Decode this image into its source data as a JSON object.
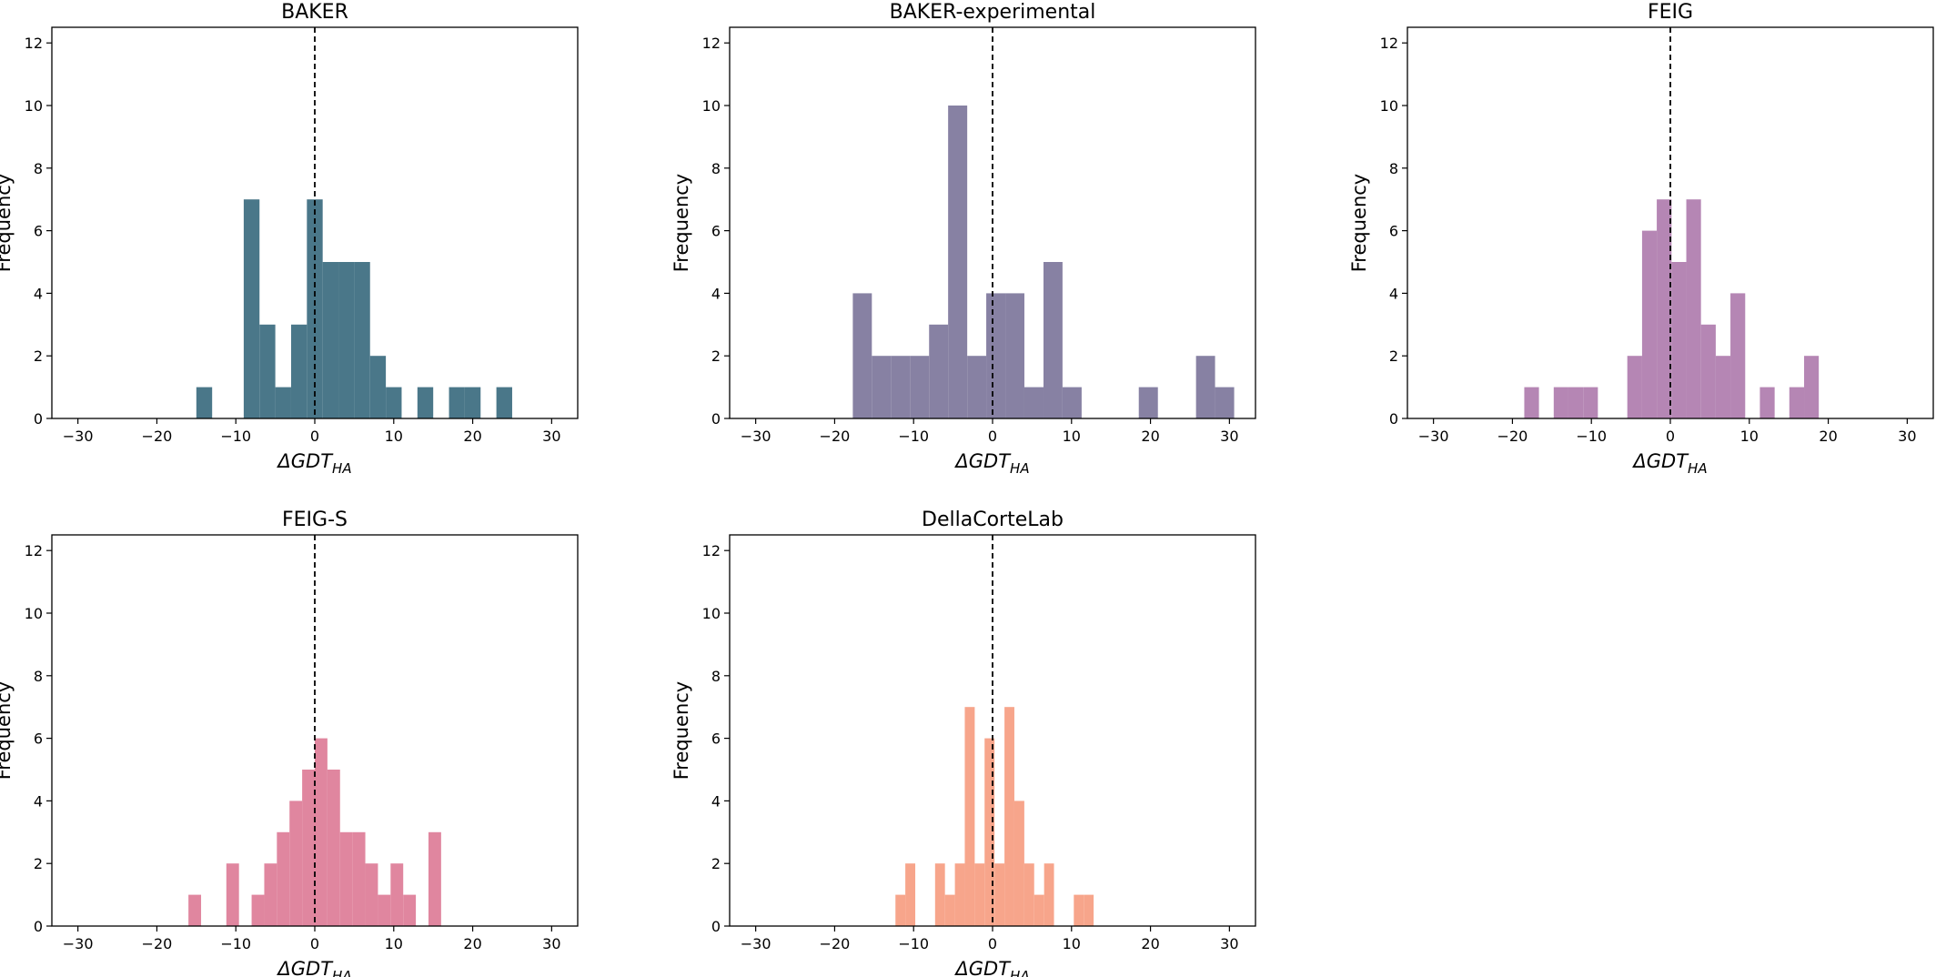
{
  "chart_data": [
    {
      "type": "histogram",
      "title": "BAKER",
      "color": "#4a7789",
      "bins": [
        -15,
        -13,
        -11,
        -9,
        -7,
        -5,
        -3,
        -1,
        1,
        3,
        5,
        7,
        9,
        11,
        13,
        15,
        17,
        19,
        21,
        23,
        25
      ],
      "values": [
        1,
        0,
        0,
        7,
        3,
        1,
        3,
        7,
        5,
        5,
        5,
        2,
        1,
        0,
        1,
        0,
        1,
        1,
        0,
        1
      ],
      "xlim": [
        -33.3,
        33.3
      ],
      "xticks": [
        {
          "value": -30,
          "label": "−30"
        },
        {
          "value": -20,
          "label": "−20"
        },
        {
          "value": -10,
          "label": "−10"
        },
        0,
        10,
        20,
        30
      ],
      "ylim": [
        0,
        12.5
      ],
      "yticks": [
        0,
        2,
        4,
        6,
        8,
        10,
        12
      ],
      "xlabel": {
        "text": "ΔGDT",
        "sub": "HA"
      },
      "ylabel": "Frequency",
      "vline": 0
    },
    {
      "type": "histogram",
      "title": "BAKER-experimental",
      "color": "#8781a3",
      "bins": [
        -17.7,
        -15.29,
        -12.87,
        -10.46,
        -8.04,
        -5.63,
        -3.21,
        -0.8,
        1.62,
        4.03,
        6.45,
        8.86,
        11.28,
        13.69,
        16.11,
        18.52,
        20.94,
        23.35,
        25.77,
        28.18,
        30.6
      ],
      "values": [
        4,
        2,
        2,
        2,
        3,
        10,
        2,
        4,
        4,
        1,
        5,
        1,
        0,
        0,
        0,
        1,
        0,
        0,
        2,
        1
      ],
      "xlim": [
        -33.3,
        33.3
      ],
      "xticks": [
        {
          "value": -30,
          "label": "−30"
        },
        {
          "value": -20,
          "label": "−20"
        },
        {
          "value": -10,
          "label": "−10"
        },
        0,
        10,
        20,
        30
      ],
      "ylim": [
        0,
        12.5
      ],
      "yticks": [
        0,
        2,
        4,
        6,
        8,
        10,
        12
      ],
      "xlabel": {
        "text": "ΔGDT",
        "sub": "HA"
      },
      "ylabel": "Frequency",
      "vline": 0
    },
    {
      "type": "histogram",
      "title": "FEIG",
      "color": "#b586b4",
      "bins": [
        -18.5,
        -16.64,
        -14.77,
        -12.91,
        -11.04,
        -9.18,
        -7.31,
        -5.45,
        -3.58,
        -1.72,
        0.15,
        2.02,
        3.88,
        5.75,
        7.61,
        9.48,
        11.34,
        13.21,
        15.07,
        16.94,
        18.8
      ],
      "values": [
        1,
        0,
        1,
        1,
        1,
        0,
        0,
        2,
        6,
        7,
        5,
        7,
        3,
        2,
        4,
        0,
        1,
        0,
        1,
        2
      ],
      "xlim": [
        -33.3,
        33.3
      ],
      "xticks": [
        {
          "value": -30,
          "label": "−30"
        },
        {
          "value": -20,
          "label": "−20"
        },
        {
          "value": -10,
          "label": "−10"
        },
        0,
        10,
        20,
        30
      ],
      "ylim": [
        0,
        12.5
      ],
      "yticks": [
        0,
        2,
        4,
        6,
        8,
        10,
        12
      ],
      "xlabel": {
        "text": "ΔGDT",
        "sub": "HA"
      },
      "ylabel": "Frequency",
      "vline": 0
    },
    {
      "type": "histogram",
      "title": "FEIG-S",
      "color": "#e0869f",
      "bins": [
        -16,
        -14.4,
        -12.8,
        -11.2,
        -9.6,
        -8,
        -6.4,
        -4.8,
        -3.2,
        -1.6,
        0,
        1.6,
        3.2,
        4.8,
        6.4,
        8,
        9.6,
        11.2,
        12.8,
        14.4,
        16
      ],
      "values": [
        1,
        0,
        0,
        2,
        0,
        1,
        2,
        3,
        4,
        5,
        6,
        5,
        3,
        3,
        2,
        1,
        2,
        1,
        0,
        3
      ],
      "xlim": [
        -33.3,
        33.3
      ],
      "xticks": [
        {
          "value": -30,
          "label": "−30"
        },
        {
          "value": -20,
          "label": "−20"
        },
        {
          "value": -10,
          "label": "−10"
        },
        0,
        10,
        20,
        30
      ],
      "ylim": [
        0,
        12.5
      ],
      "yticks": [
        0,
        2,
        4,
        6,
        8,
        10,
        12
      ],
      "xlabel": {
        "text": "ΔGDT",
        "sub": "HA"
      },
      "ylabel": "Frequency",
      "vline": 0
    },
    {
      "type": "histogram",
      "title": "DellaCorteLab",
      "color": "#f7a58b",
      "bins": [
        -12.3,
        -11.05,
        -9.79,
        -8.54,
        -7.28,
        -6.03,
        -4.77,
        -3.52,
        -2.26,
        -1.01,
        0.25,
        1.51,
        2.76,
        4.02,
        5.27,
        6.53,
        7.78,
        9.04,
        10.29,
        11.55,
        12.8
      ],
      "values": [
        1,
        2,
        0,
        0,
        2,
        1,
        2,
        7,
        2,
        6,
        2,
        7,
        4,
        2,
        1,
        2,
        0,
        0,
        1,
        1
      ],
      "xlim": [
        -33.3,
        33.3
      ],
      "xticks": [
        {
          "value": -30,
          "label": "−30"
        },
        {
          "value": -20,
          "label": "−20"
        },
        {
          "value": -10,
          "label": "−10"
        },
        0,
        10,
        20,
        30
      ],
      "ylim": [
        0,
        12.5
      ],
      "yticks": [
        0,
        2,
        4,
        6,
        8,
        10,
        12
      ],
      "xlabel": {
        "text": "ΔGDT",
        "sub": "HA"
      },
      "ylabel": "Frequency",
      "vline": 0
    }
  ]
}
